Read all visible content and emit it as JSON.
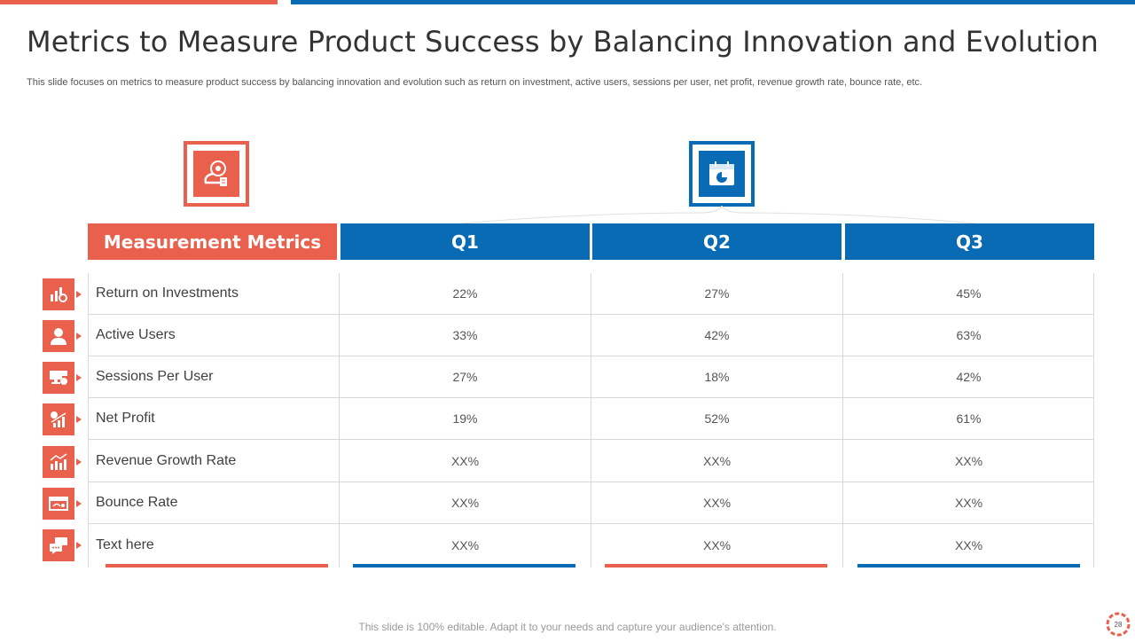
{
  "title": "Metrics to Measure Product Success by Balancing Innovation and Evolution",
  "subtitle": "This slide focuses on metrics to measure product success by balancing innovation and evolution such as return on investment, active users, sessions per user, net profit, revenue growth rate,  bounce rate, etc.",
  "table": {
    "headers": [
      "Measurement Metrics",
      "Q1",
      "Q2",
      "Q3"
    ],
    "rows": [
      {
        "label": "Return  on Investments",
        "values": [
          "22%",
          "27%",
          "45%"
        ],
        "icon": "roi-coins-icon"
      },
      {
        "label": "Active Users",
        "values": [
          "33%",
          "42%",
          "63%"
        ],
        "icon": "user-icon"
      },
      {
        "label": "Sessions Per User",
        "values": [
          "27%",
          "18%",
          "42%"
        ],
        "icon": "session-monitor-icon"
      },
      {
        "label": "Net Profit",
        "values": [
          "19%",
          "52%",
          "61%"
        ],
        "icon": "profit-chart-icon"
      },
      {
        "label": "Revenue  Growth Rate",
        "values": [
          "XX%",
          "XX%",
          "XX%"
        ],
        "icon": "growth-chart-icon"
      },
      {
        "label": "Bounce Rate",
        "values": [
          "XX%",
          "XX%",
          "XX%"
        ],
        "icon": "bounce-browser-icon"
      },
      {
        "label": "Text  here",
        "values": [
          "XX%",
          "XX%",
          "XX%"
        ],
        "icon": "chat-bubbles-icon"
      }
    ]
  },
  "footer": "This slide is 100% editable. Adapt it to your needs and capture your audience's attention.",
  "page_number": "28",
  "colors": {
    "accent": "#e9604c",
    "primary": "#0a6bb5"
  },
  "header_icons": [
    "measuring-tape-icon",
    "calendar-icon"
  ]
}
